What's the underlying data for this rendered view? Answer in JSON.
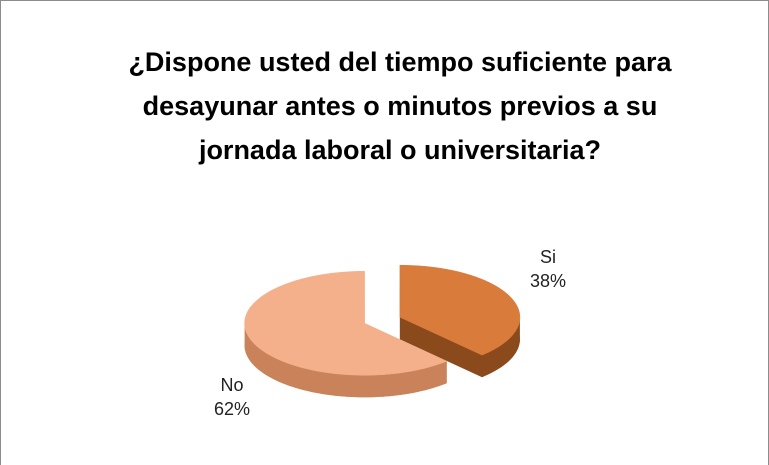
{
  "chart_data": {
    "type": "pie3d",
    "title": "¿Dispone usted del tiempo suficiente para desayunar antes o minutos previos a su jornada laboral o universitaria?",
    "categories": [
      "Si",
      "No"
    ],
    "values": [
      38,
      62
    ],
    "value_labels": [
      "38%",
      "62%"
    ],
    "colors": [
      "#d97b3a",
      "#f4b08a"
    ],
    "side_colors": [
      "#8a4a1c",
      "#c9825a"
    ]
  }
}
